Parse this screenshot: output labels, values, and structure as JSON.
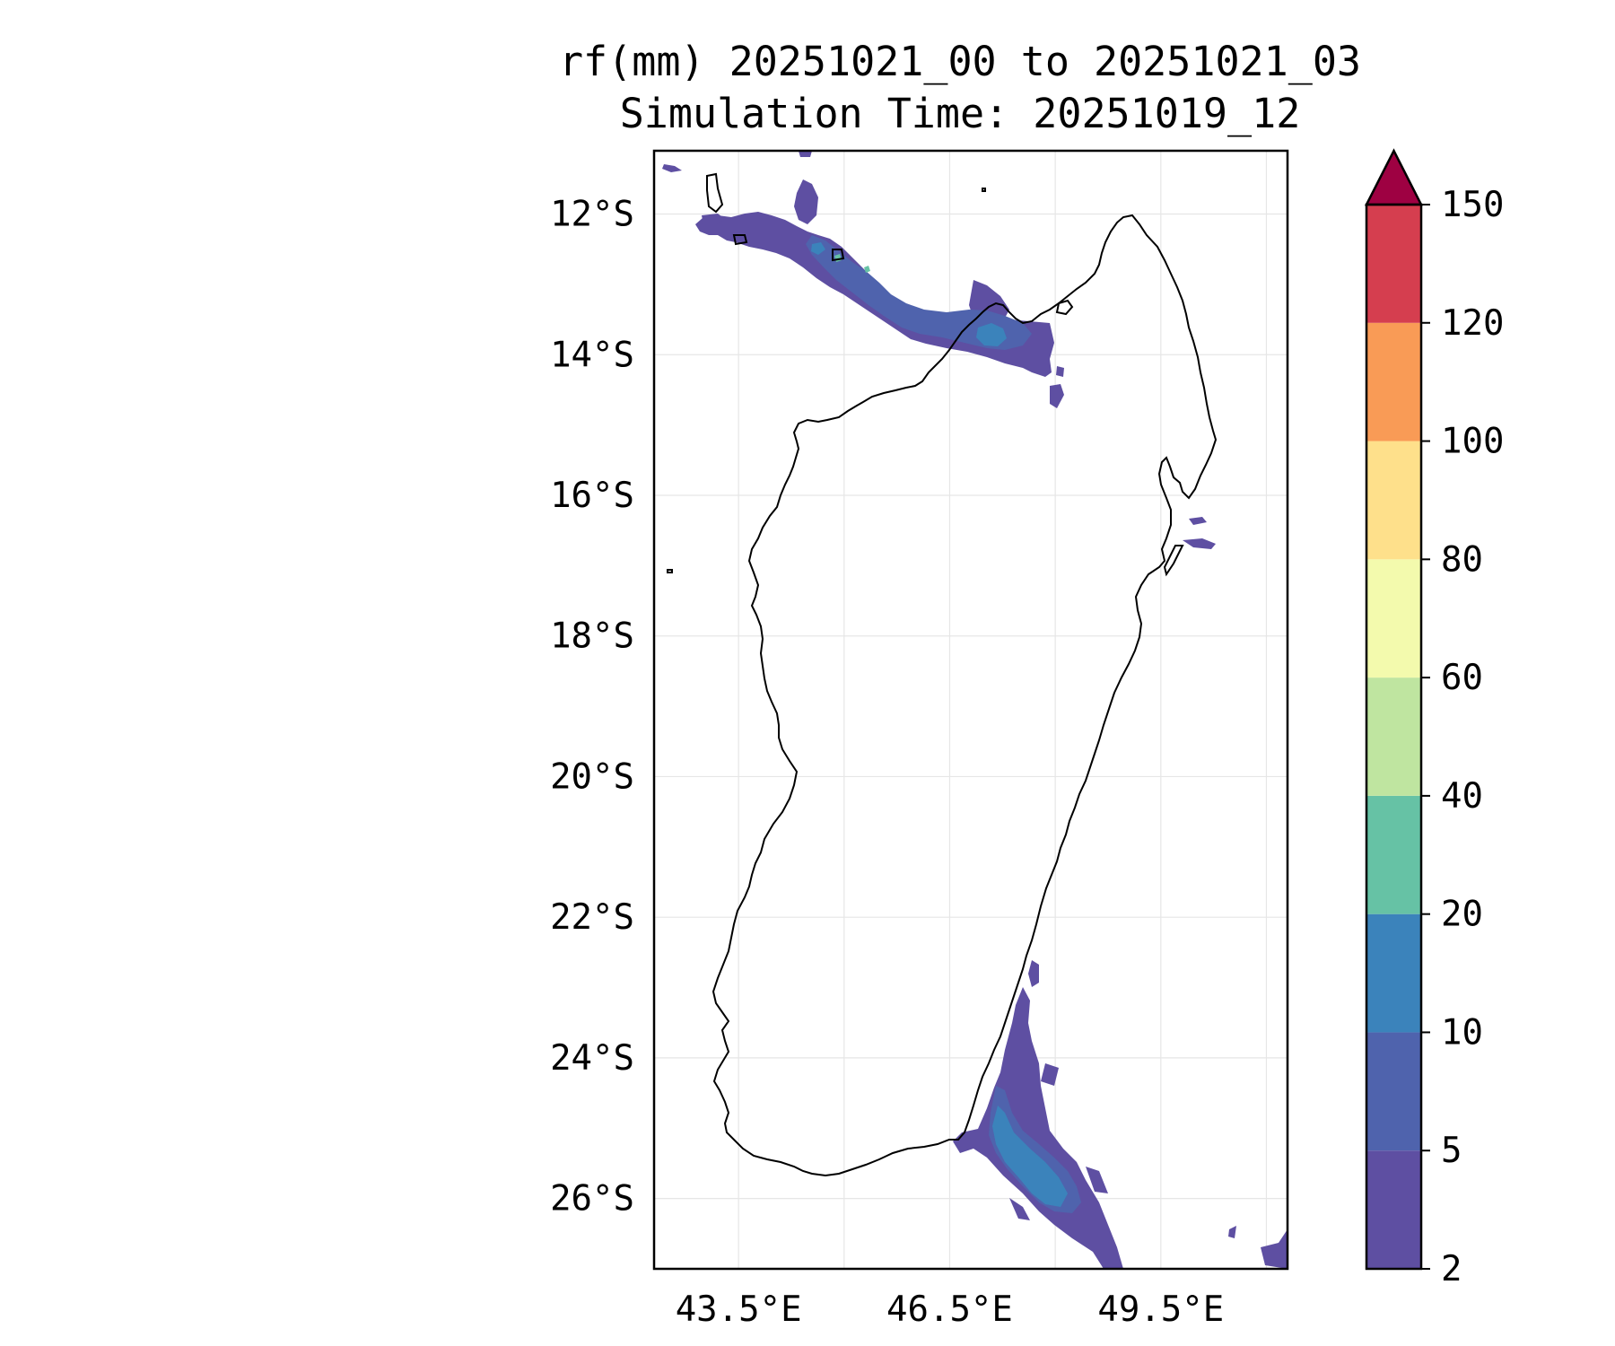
{
  "title": {
    "line1": "rf(mm) 20251021_00 to 20251021_03",
    "line2": "Simulation Time: 20251019_12"
  },
  "map": {
    "region": "Madagascar",
    "projection": "PlateCarree",
    "lon_range": [
      42.3,
      51.3
    ],
    "lat_range": [
      -27.0,
      -11.1
    ],
    "lat_ticks": [
      {
        "value": -12,
        "label": "12°S"
      },
      {
        "value": -14,
        "label": "14°S"
      },
      {
        "value": -16,
        "label": "16°S"
      },
      {
        "value": -18,
        "label": "18°S"
      },
      {
        "value": -20,
        "label": "20°S"
      },
      {
        "value": -22,
        "label": "22°S"
      },
      {
        "value": -24,
        "label": "24°S"
      },
      {
        "value": -26,
        "label": "26°S"
      }
    ],
    "lon_ticks": [
      {
        "value": 43.5,
        "label": "43.5°E"
      },
      {
        "value": 46.5,
        "label": "46.5°E"
      },
      {
        "value": 49.5,
        "label": "49.5°E"
      }
    ],
    "grid": true
  },
  "colorbar": {
    "extend": "max",
    "levels": [
      {
        "label": "2",
        "color": "#5e4fa2"
      },
      {
        "label": "5",
        "color": "#4f63ad"
      },
      {
        "label": "10",
        "color": "#3b83bb"
      },
      {
        "label": "20",
        "color": "#66c2a5"
      },
      {
        "label": "40",
        "color": "#bfe5a0"
      },
      {
        "label": "60",
        "color": "#f3faad"
      },
      {
        "label": "80",
        "color": "#fee08b"
      },
      {
        "label": "100",
        "color": "#f99b56"
      },
      {
        "label": "120",
        "color": "#d53e4f"
      },
      {
        "label": "150",
        "color": "#9e0142"
      }
    ]
  },
  "colors": {
    "rain_2_5": "#5e4fa2",
    "rain_5_10": "#4f63ad",
    "rain_10_20": "#3b83bb",
    "rain_20_40": "#66c2a5"
  }
}
